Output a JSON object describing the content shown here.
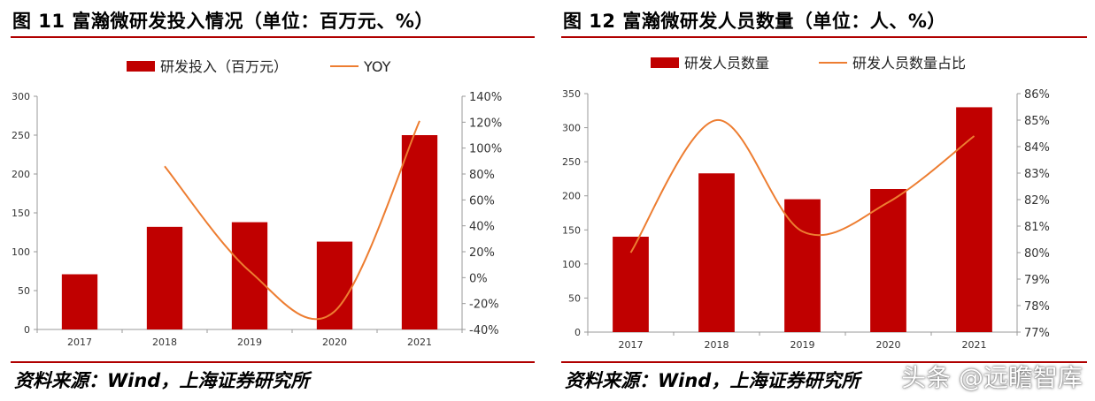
{
  "colors": {
    "bar": "#c00000",
    "line": "#ed7d31",
    "rule": "#b00000",
    "axis": "#999999"
  },
  "watermark": "头条 @远瞻智库",
  "panels": [
    {
      "title": "图 11 富瀚微研发投入情况（单位：百万元、%）",
      "source": "资料来源：Wind，上海证券研究所"
    },
    {
      "title": "图 12 富瀚微研发人员数量（单位：人、%）",
      "source": "资料来源：Wind，上海证券研究所"
    }
  ],
  "chart_data": [
    {
      "type": "bar+line",
      "categories": [
        "2017",
        "2018",
        "2019",
        "2020",
        "2021"
      ],
      "series": [
        {
          "name": "研发投入（百万元）",
          "type": "bar",
          "axis": "left",
          "values": [
            71,
            132,
            138,
            113,
            250
          ]
        },
        {
          "name": "YOY",
          "type": "line",
          "axis": "right",
          "values": [
            null,
            86,
            5,
            -26,
            121
          ]
        }
      ],
      "left_axis": {
        "min": 0,
        "max": 300,
        "ticks": [
          "0",
          "50",
          "100",
          "150",
          "200",
          "250",
          "300"
        ]
      },
      "right_axis": {
        "min": -40,
        "max": 140,
        "ticks": [
          "-40%",
          "-20%",
          "0%",
          "20%",
          "40%",
          "60%",
          "80%",
          "100%",
          "120%",
          "140%"
        ]
      },
      "legend": "top"
    },
    {
      "type": "bar+line",
      "categories": [
        "2017",
        "2018",
        "2019",
        "2020",
        "2021"
      ],
      "series": [
        {
          "name": "研发人员数量",
          "type": "bar",
          "axis": "left",
          "values": [
            140,
            233,
            195,
            210,
            330
          ]
        },
        {
          "name": "研发人员数量占比",
          "type": "line",
          "axis": "right",
          "values": [
            80.0,
            85.0,
            80.8,
            81.9,
            84.4
          ]
        }
      ],
      "left_axis": {
        "min": 0,
        "max": 350,
        "ticks": [
          "0",
          "50",
          "100",
          "150",
          "200",
          "250",
          "300",
          "350"
        ]
      },
      "right_axis": {
        "min": 77,
        "max": 86,
        "ticks": [
          "77%",
          "78%",
          "79%",
          "80%",
          "81%",
          "82%",
          "83%",
          "84%",
          "85%",
          "86%"
        ]
      },
      "legend": "top"
    }
  ]
}
